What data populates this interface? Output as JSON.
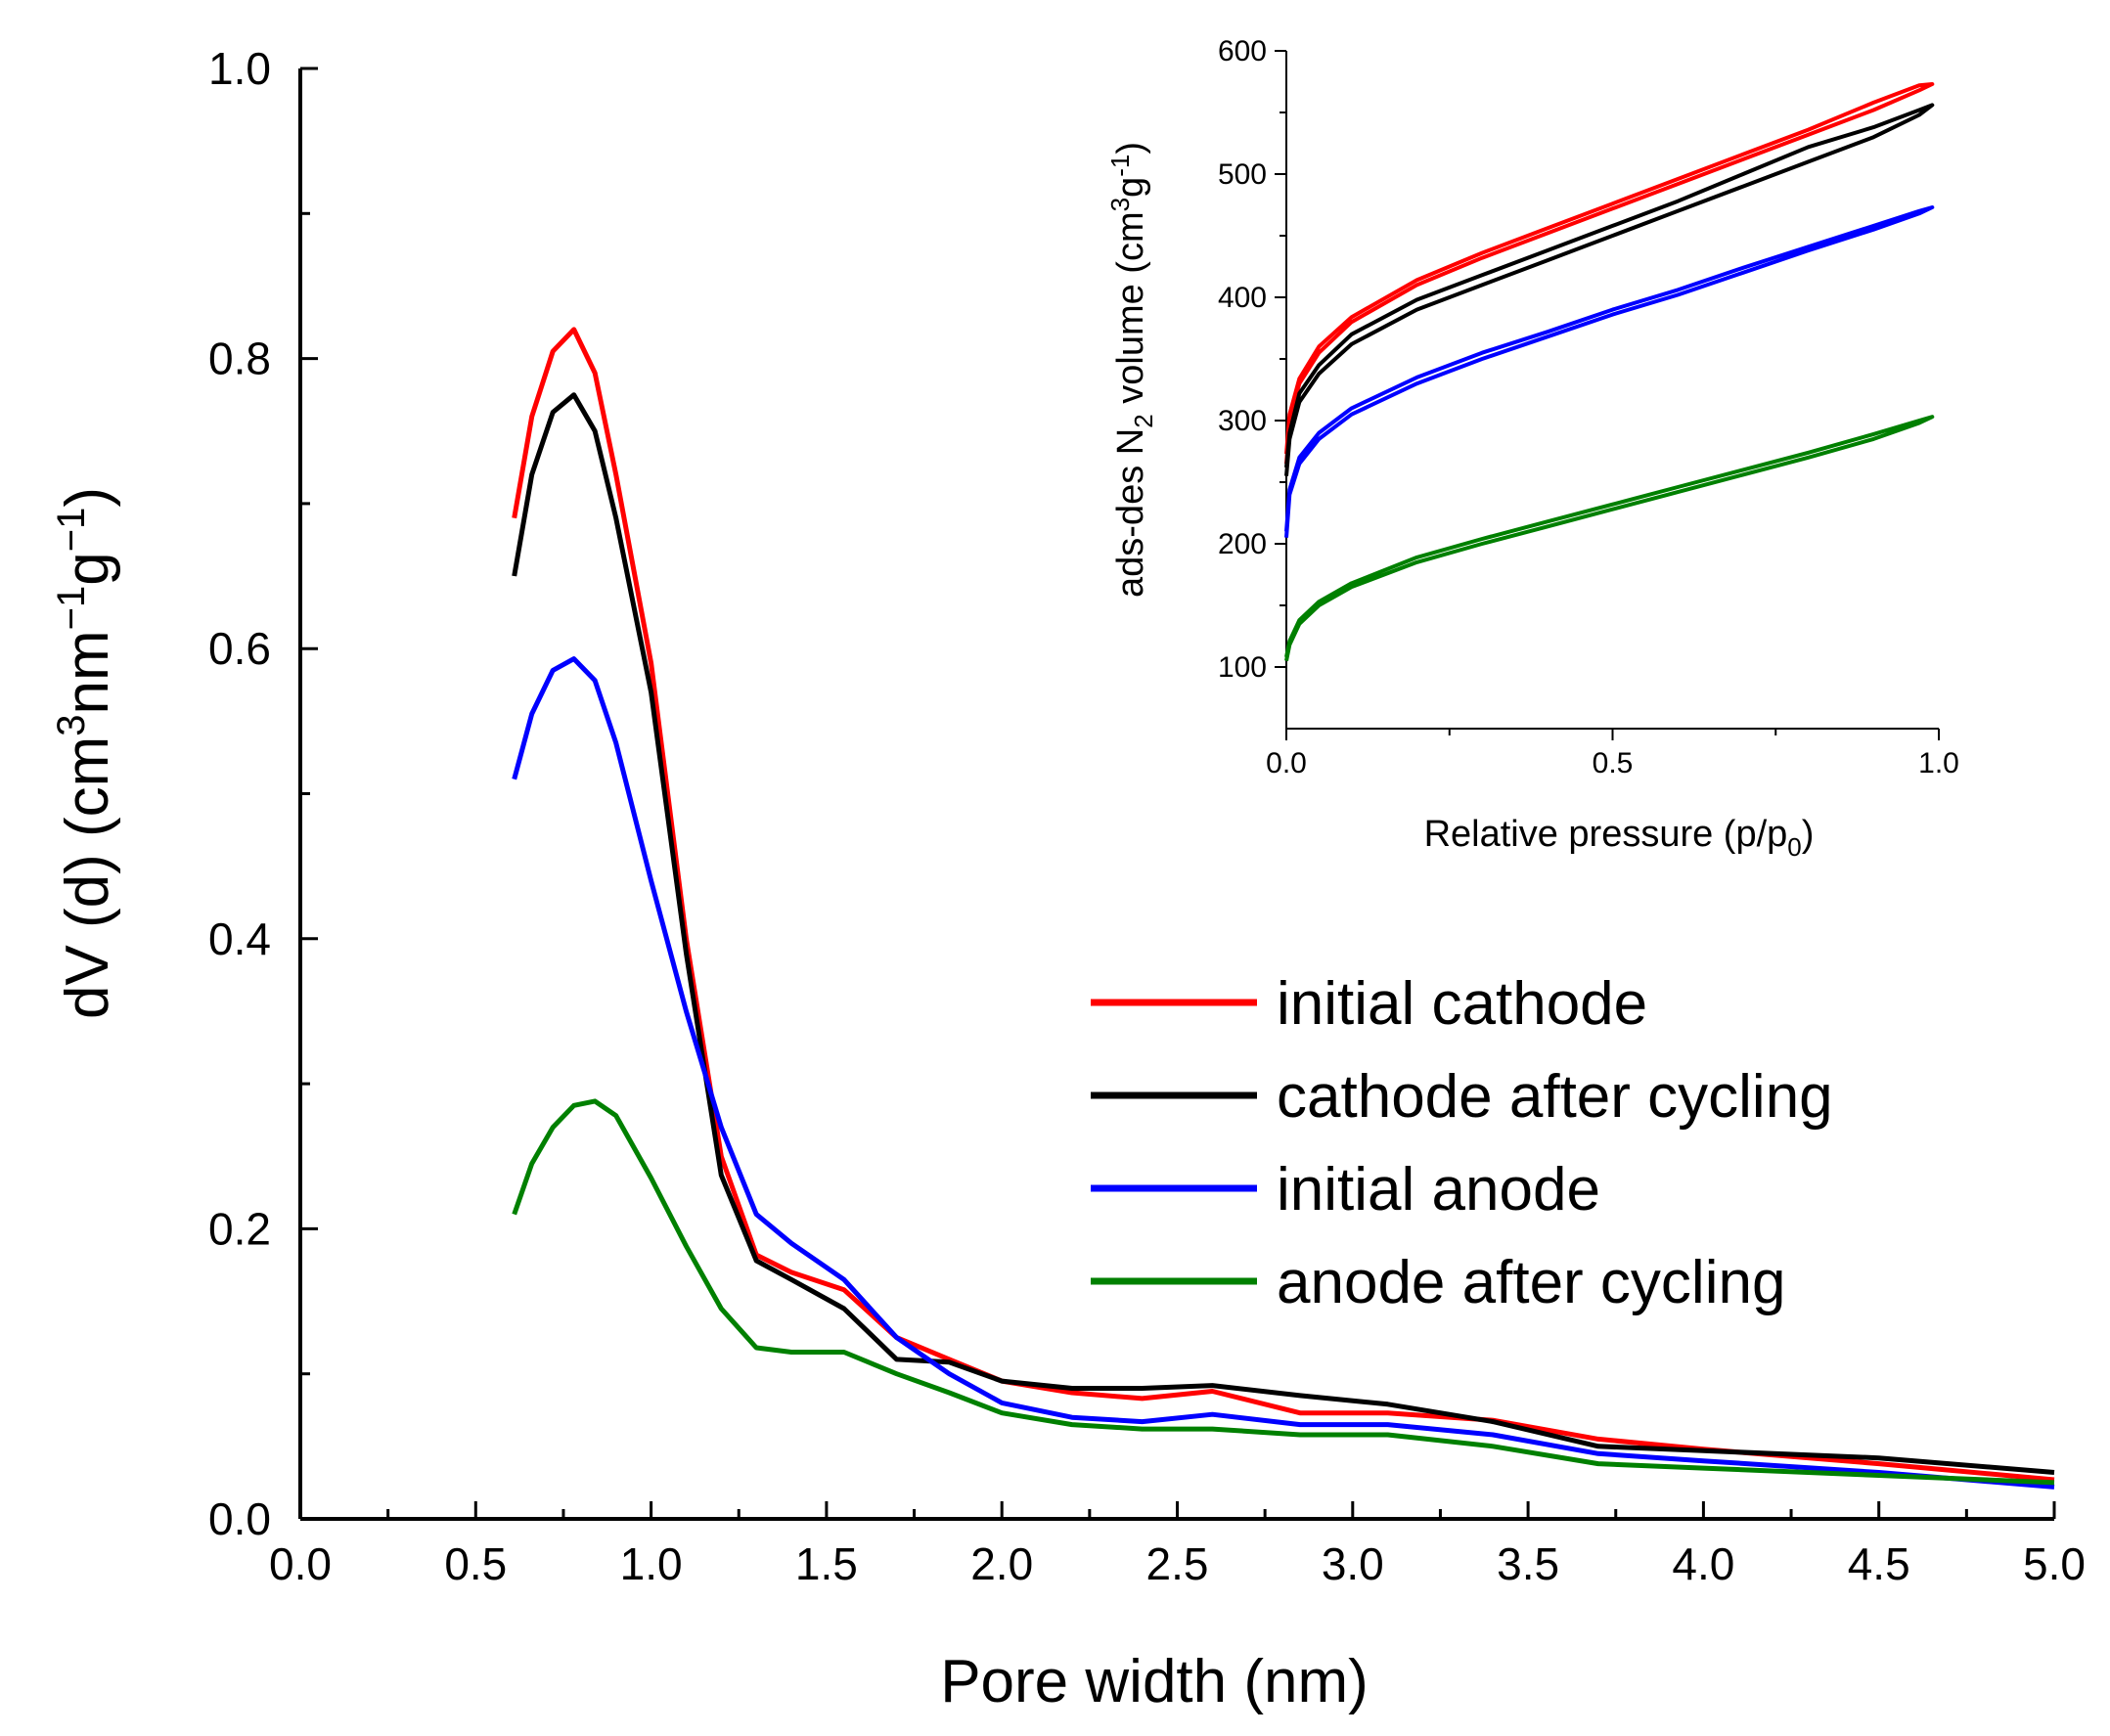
{
  "chart_data": [
    {
      "id": "main",
      "type": "line",
      "title": "",
      "xlabel": "Pore width (nm)",
      "ylabel": "dV (d) (cm³nm⁻¹g⁻¹)",
      "ylabel_parts": {
        "a": "dV (d) (cm",
        "b": "3",
        "c": "nm",
        "d": "−1",
        "e": "g",
        "f": "−1",
        "g": ")"
      },
      "xlim": [
        0.0,
        5.0
      ],
      "ylim": [
        0.0,
        1.0
      ],
      "xticks": [
        "0.0",
        "0.5",
        "1.0",
        "1.5",
        "2.0",
        "2.5",
        "3.0",
        "3.5",
        "4.0",
        "4.5",
        "5.0"
      ],
      "yticks": [
        "0.0",
        "0.2",
        "0.4",
        "0.6",
        "0.8",
        "1.0"
      ],
      "legend_position": "center-right",
      "series": [
        {
          "name": "initial cathode",
          "color": "#ff0000",
          "x": [
            0.61,
            0.66,
            0.72,
            0.78,
            0.84,
            0.9,
            1.0,
            1.1,
            1.2,
            1.3,
            1.4,
            1.55,
            1.7,
            1.85,
            2.0,
            2.2,
            2.4,
            2.6,
            2.85,
            3.1,
            3.4,
            3.7,
            4.0,
            4.5,
            5.0
          ],
          "y": [
            0.69,
            0.76,
            0.805,
            0.82,
            0.79,
            0.72,
            0.59,
            0.4,
            0.25,
            0.182,
            0.17,
            0.158,
            0.125,
            0.11,
            0.095,
            0.087,
            0.083,
            0.088,
            0.073,
            0.073,
            0.068,
            0.055,
            0.048,
            0.038,
            0.027
          ]
        },
        {
          "name": "cathode after cycling",
          "color": "#000000",
          "x": [
            0.61,
            0.66,
            0.72,
            0.78,
            0.84,
            0.9,
            1.0,
            1.1,
            1.2,
            1.3,
            1.4,
            1.55,
            1.7,
            1.85,
            2.0,
            2.2,
            2.4,
            2.6,
            2.85,
            3.1,
            3.4,
            3.7,
            4.0,
            4.5,
            5.0
          ],
          "y": [
            0.65,
            0.72,
            0.763,
            0.775,
            0.75,
            0.69,
            0.57,
            0.39,
            0.237,
            0.178,
            0.165,
            0.145,
            0.11,
            0.108,
            0.095,
            0.09,
            0.09,
            0.092,
            0.085,
            0.079,
            0.067,
            0.05,
            0.047,
            0.042,
            0.032
          ]
        },
        {
          "name": "initial anode",
          "color": "#0000ff",
          "x": [
            0.61,
            0.66,
            0.72,
            0.78,
            0.84,
            0.9,
            1.0,
            1.1,
            1.2,
            1.3,
            1.4,
            1.55,
            1.7,
            1.85,
            2.0,
            2.2,
            2.4,
            2.6,
            2.85,
            3.1,
            3.4,
            3.7,
            4.0,
            4.5,
            5.0
          ],
          "y": [
            0.51,
            0.555,
            0.585,
            0.593,
            0.578,
            0.535,
            0.44,
            0.35,
            0.27,
            0.21,
            0.19,
            0.165,
            0.125,
            0.1,
            0.08,
            0.07,
            0.067,
            0.072,
            0.065,
            0.065,
            0.058,
            0.045,
            0.04,
            0.032,
            0.022
          ]
        },
        {
          "name": "anode after cycling",
          "color": "#008000",
          "x": [
            0.61,
            0.66,
            0.72,
            0.78,
            0.84,
            0.9,
            1.0,
            1.1,
            1.2,
            1.3,
            1.4,
            1.55,
            1.7,
            1.85,
            2.0,
            2.2,
            2.4,
            2.6,
            2.85,
            3.1,
            3.4,
            3.7,
            4.0,
            4.5,
            5.0
          ],
          "y": [
            0.21,
            0.245,
            0.27,
            0.285,
            0.288,
            0.278,
            0.235,
            0.188,
            0.145,
            0.118,
            0.115,
            0.115,
            0.1,
            0.087,
            0.073,
            0.065,
            0.062,
            0.062,
            0.058,
            0.058,
            0.05,
            0.038,
            0.035,
            0.03,
            0.025
          ]
        }
      ]
    },
    {
      "id": "inset",
      "type": "line",
      "title": "",
      "xlabel": "Relative pressure (p/p₀)",
      "xlabel_parts": {
        "a": "Relative pressure (p/p",
        "b": "0",
        "c": ")"
      },
      "ylabel": "ads-des N₂ volume (cm³g⁻¹)",
      "ylabel_parts": {
        "a": "ads-des N",
        "b": "2",
        "c": " volume (cm",
        "d": "3",
        "e": "g",
        "f": "-1",
        "g": ")"
      },
      "xlim": [
        0.0,
        1.0
      ],
      "ylim": [
        50,
        600
      ],
      "xticks": [
        "0.0",
        "0.5",
        "1.0"
      ],
      "yticks": [
        "100",
        "200",
        "300",
        "400",
        "500",
        "600"
      ],
      "series": [
        {
          "name": "initial cathode",
          "color": "#ff0000",
          "x": [
            0.0,
            0.005,
            0.02,
            0.05,
            0.1,
            0.2,
            0.3,
            0.4,
            0.5,
            0.6,
            0.7,
            0.8,
            0.9,
            0.97,
            0.99
          ],
          "y": [
            265,
            300,
            330,
            355,
            380,
            410,
            432,
            452,
            472,
            492,
            512,
            532,
            552,
            568,
            573
          ],
          "y_return": [
            273,
            305,
            334,
            360,
            384,
            414,
            436,
            456,
            476,
            496,
            516,
            536,
            558,
            572,
            573
          ]
        },
        {
          "name": "cathode after cycling",
          "color": "#000000",
          "x": [
            0.0,
            0.005,
            0.02,
            0.05,
            0.1,
            0.2,
            0.3,
            0.4,
            0.5,
            0.6,
            0.7,
            0.8,
            0.9,
            0.97,
            0.99
          ],
          "y": [
            255,
            285,
            315,
            338,
            362,
            390,
            410,
            430,
            450,
            470,
            490,
            510,
            530,
            548,
            556
          ],
          "y_return": [
            262,
            290,
            322,
            345,
            370,
            398,
            418,
            438,
            458,
            478,
            500,
            522,
            538,
            552,
            556
          ]
        },
        {
          "name": "initial anode",
          "color": "#0000ff",
          "x": [
            0.0,
            0.005,
            0.02,
            0.05,
            0.1,
            0.2,
            0.3,
            0.4,
            0.5,
            0.6,
            0.7,
            0.8,
            0.9,
            0.97,
            0.99
          ],
          "y": [
            205,
            240,
            265,
            285,
            305,
            330,
            350,
            368,
            386,
            402,
            420,
            438,
            455,
            468,
            473
          ],
          "y_return": [
            210,
            244,
            270,
            290,
            310,
            335,
            355,
            372,
            390,
            406,
            424,
            441,
            458,
            470,
            473
          ]
        },
        {
          "name": "anode after cycling",
          "color": "#008000",
          "x": [
            0.0,
            0.005,
            0.02,
            0.05,
            0.1,
            0.2,
            0.3,
            0.4,
            0.5,
            0.6,
            0.7,
            0.8,
            0.9,
            0.97,
            0.99
          ],
          "y": [
            105,
            118,
            135,
            150,
            165,
            185,
            200,
            214,
            228,
            242,
            256,
            270,
            285,
            298,
            303
          ],
          "y_return": [
            108,
            121,
            138,
            153,
            168,
            189,
            204,
            218,
            232,
            246,
            260,
            274,
            289,
            300,
            303
          ]
        }
      ]
    }
  ]
}
